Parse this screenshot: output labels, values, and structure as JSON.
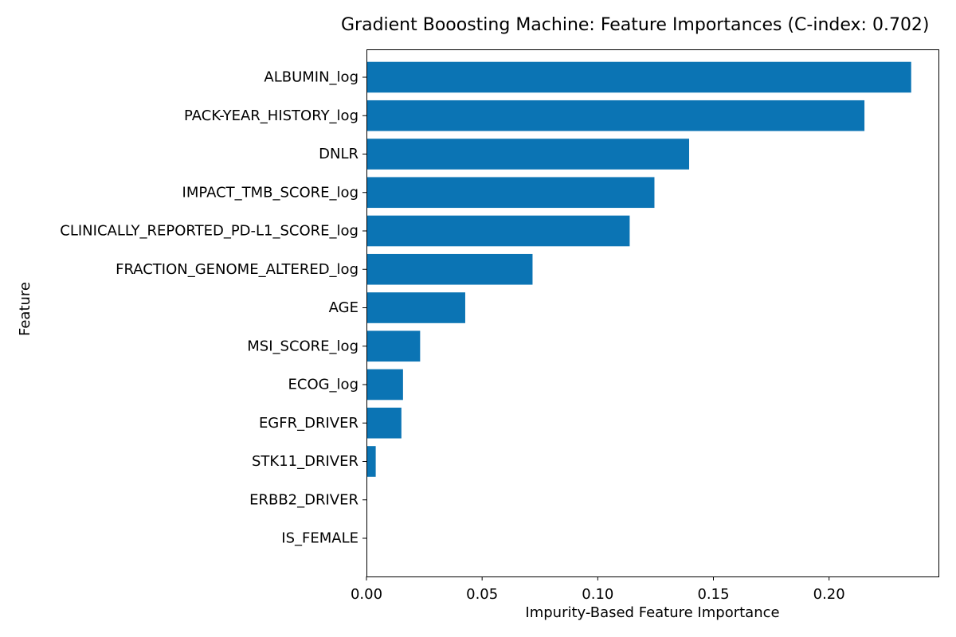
{
  "chart_data": {
    "type": "bar",
    "orientation": "horizontal",
    "title": "Gradient Booosting Machine: Feature Importances (C-index: 0.702)",
    "xlabel": "Impurity-Based Feature Importance",
    "ylabel": "Feature",
    "categories": [
      "ALBUMIN_log",
      "PACK-YEAR_HISTORY_log",
      "DNLR",
      "IMPACT_TMB_SCORE_log",
      "CLINICALLY_REPORTED_PD-L1_SCORE_log",
      "FRACTION_GENOME_ALTERED_log",
      "AGE",
      "MSI_SCORE_log",
      "ECOG_log",
      "EGFR_DRIVER",
      "STK11_DRIVER",
      "ERBB2_DRIVER",
      "IS_FEMALE"
    ],
    "values": [
      0.2355,
      0.2153,
      0.1395,
      0.1245,
      0.1138,
      0.0718,
      0.0427,
      0.0232,
      0.0158,
      0.0151,
      0.004,
      0.0,
      0.0
    ],
    "xlim": [
      0,
      0.2473
    ],
    "xticks": [
      0.0,
      0.05,
      0.1,
      0.15,
      0.2
    ],
    "xtick_labels": [
      "0.00",
      "0.05",
      "0.10",
      "0.15",
      "0.20"
    ],
    "bar_color": "#0b74b4",
    "grid": false,
    "legend": "none"
  }
}
